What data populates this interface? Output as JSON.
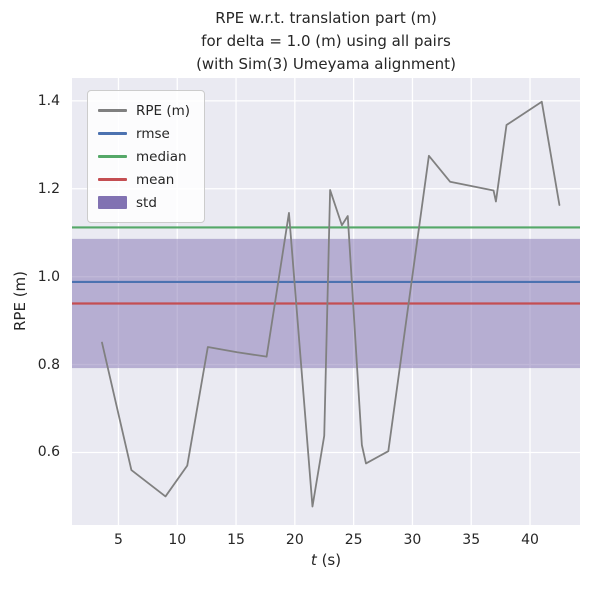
{
  "chart_data": {
    "type": "line",
    "title_lines": [
      "RPE w.r.t. translation part (m)",
      "for delta = 1.0 (m) using all pairs",
      "(with Sim(3) Umeyama alignment)"
    ],
    "xlabel_italic": "t",
    "xlabel_rest": " (s)",
    "ylabel": "RPE (m)",
    "xlim": [
      1.05,
      44.25
    ],
    "ylim": [
      0.435,
      1.452
    ],
    "xticks": [
      5,
      10,
      15,
      20,
      25,
      30,
      35,
      40
    ],
    "xtick_labels": [
      "5",
      "10",
      "15",
      "20",
      "25",
      "30",
      "35",
      "40"
    ],
    "yticks": [
      0.6,
      0.8,
      1.0,
      1.2,
      1.4
    ],
    "ytick_labels": [
      "0.6",
      "0.8",
      "1.0",
      "1.2",
      "1.4"
    ],
    "grid": true,
    "legend_position": "upper left",
    "series": [
      {
        "name": "RPE (m)",
        "type": "line",
        "color": "#808080",
        "x": [
          3.6,
          6.1,
          9.0,
          10.85,
          12.6,
          15.1,
          17.6,
          19.5,
          21.5,
          22.5,
          23.0,
          24.0,
          24.5,
          25.7,
          26.05,
          27.95,
          31.4,
          33.2,
          36.9,
          37.1,
          38.0,
          41.0,
          42.5
        ],
        "y": [
          0.85,
          0.56,
          0.5,
          0.57,
          0.84,
          0.828,
          0.818,
          1.145,
          0.477,
          0.638,
          1.197,
          1.117,
          1.138,
          0.617,
          0.575,
          0.603,
          1.275,
          1.216,
          1.196,
          1.171,
          1.345,
          1.398,
          1.163
        ]
      },
      {
        "name": "rmse",
        "type": "hline",
        "color": "#4C72B0",
        "value": 0.988
      },
      {
        "name": "median",
        "type": "hline",
        "color": "#55A868",
        "value": 1.112
      },
      {
        "name": "mean",
        "type": "hline",
        "color": "#C44E52",
        "value": 0.939
      },
      {
        "name": "std",
        "type": "band",
        "color": "#8172B2",
        "range": [
          0.792,
          1.086
        ]
      }
    ],
    "legend": [
      {
        "label": "RPE (m)",
        "swatch": "line",
        "color": "#808080"
      },
      {
        "label": "rmse",
        "swatch": "line",
        "color": "#4C72B0"
      },
      {
        "label": "median",
        "swatch": "line",
        "color": "#55A868"
      },
      {
        "label": "mean",
        "swatch": "line",
        "color": "#C44E52"
      },
      {
        "label": "std",
        "swatch": "patch",
        "color": "#8172B2"
      }
    ],
    "colors": {
      "figure_bg": "#FFFFFF",
      "axes_bg": "#EAEAF2",
      "grid": "#FFFFFF",
      "text": "#262626"
    }
  }
}
